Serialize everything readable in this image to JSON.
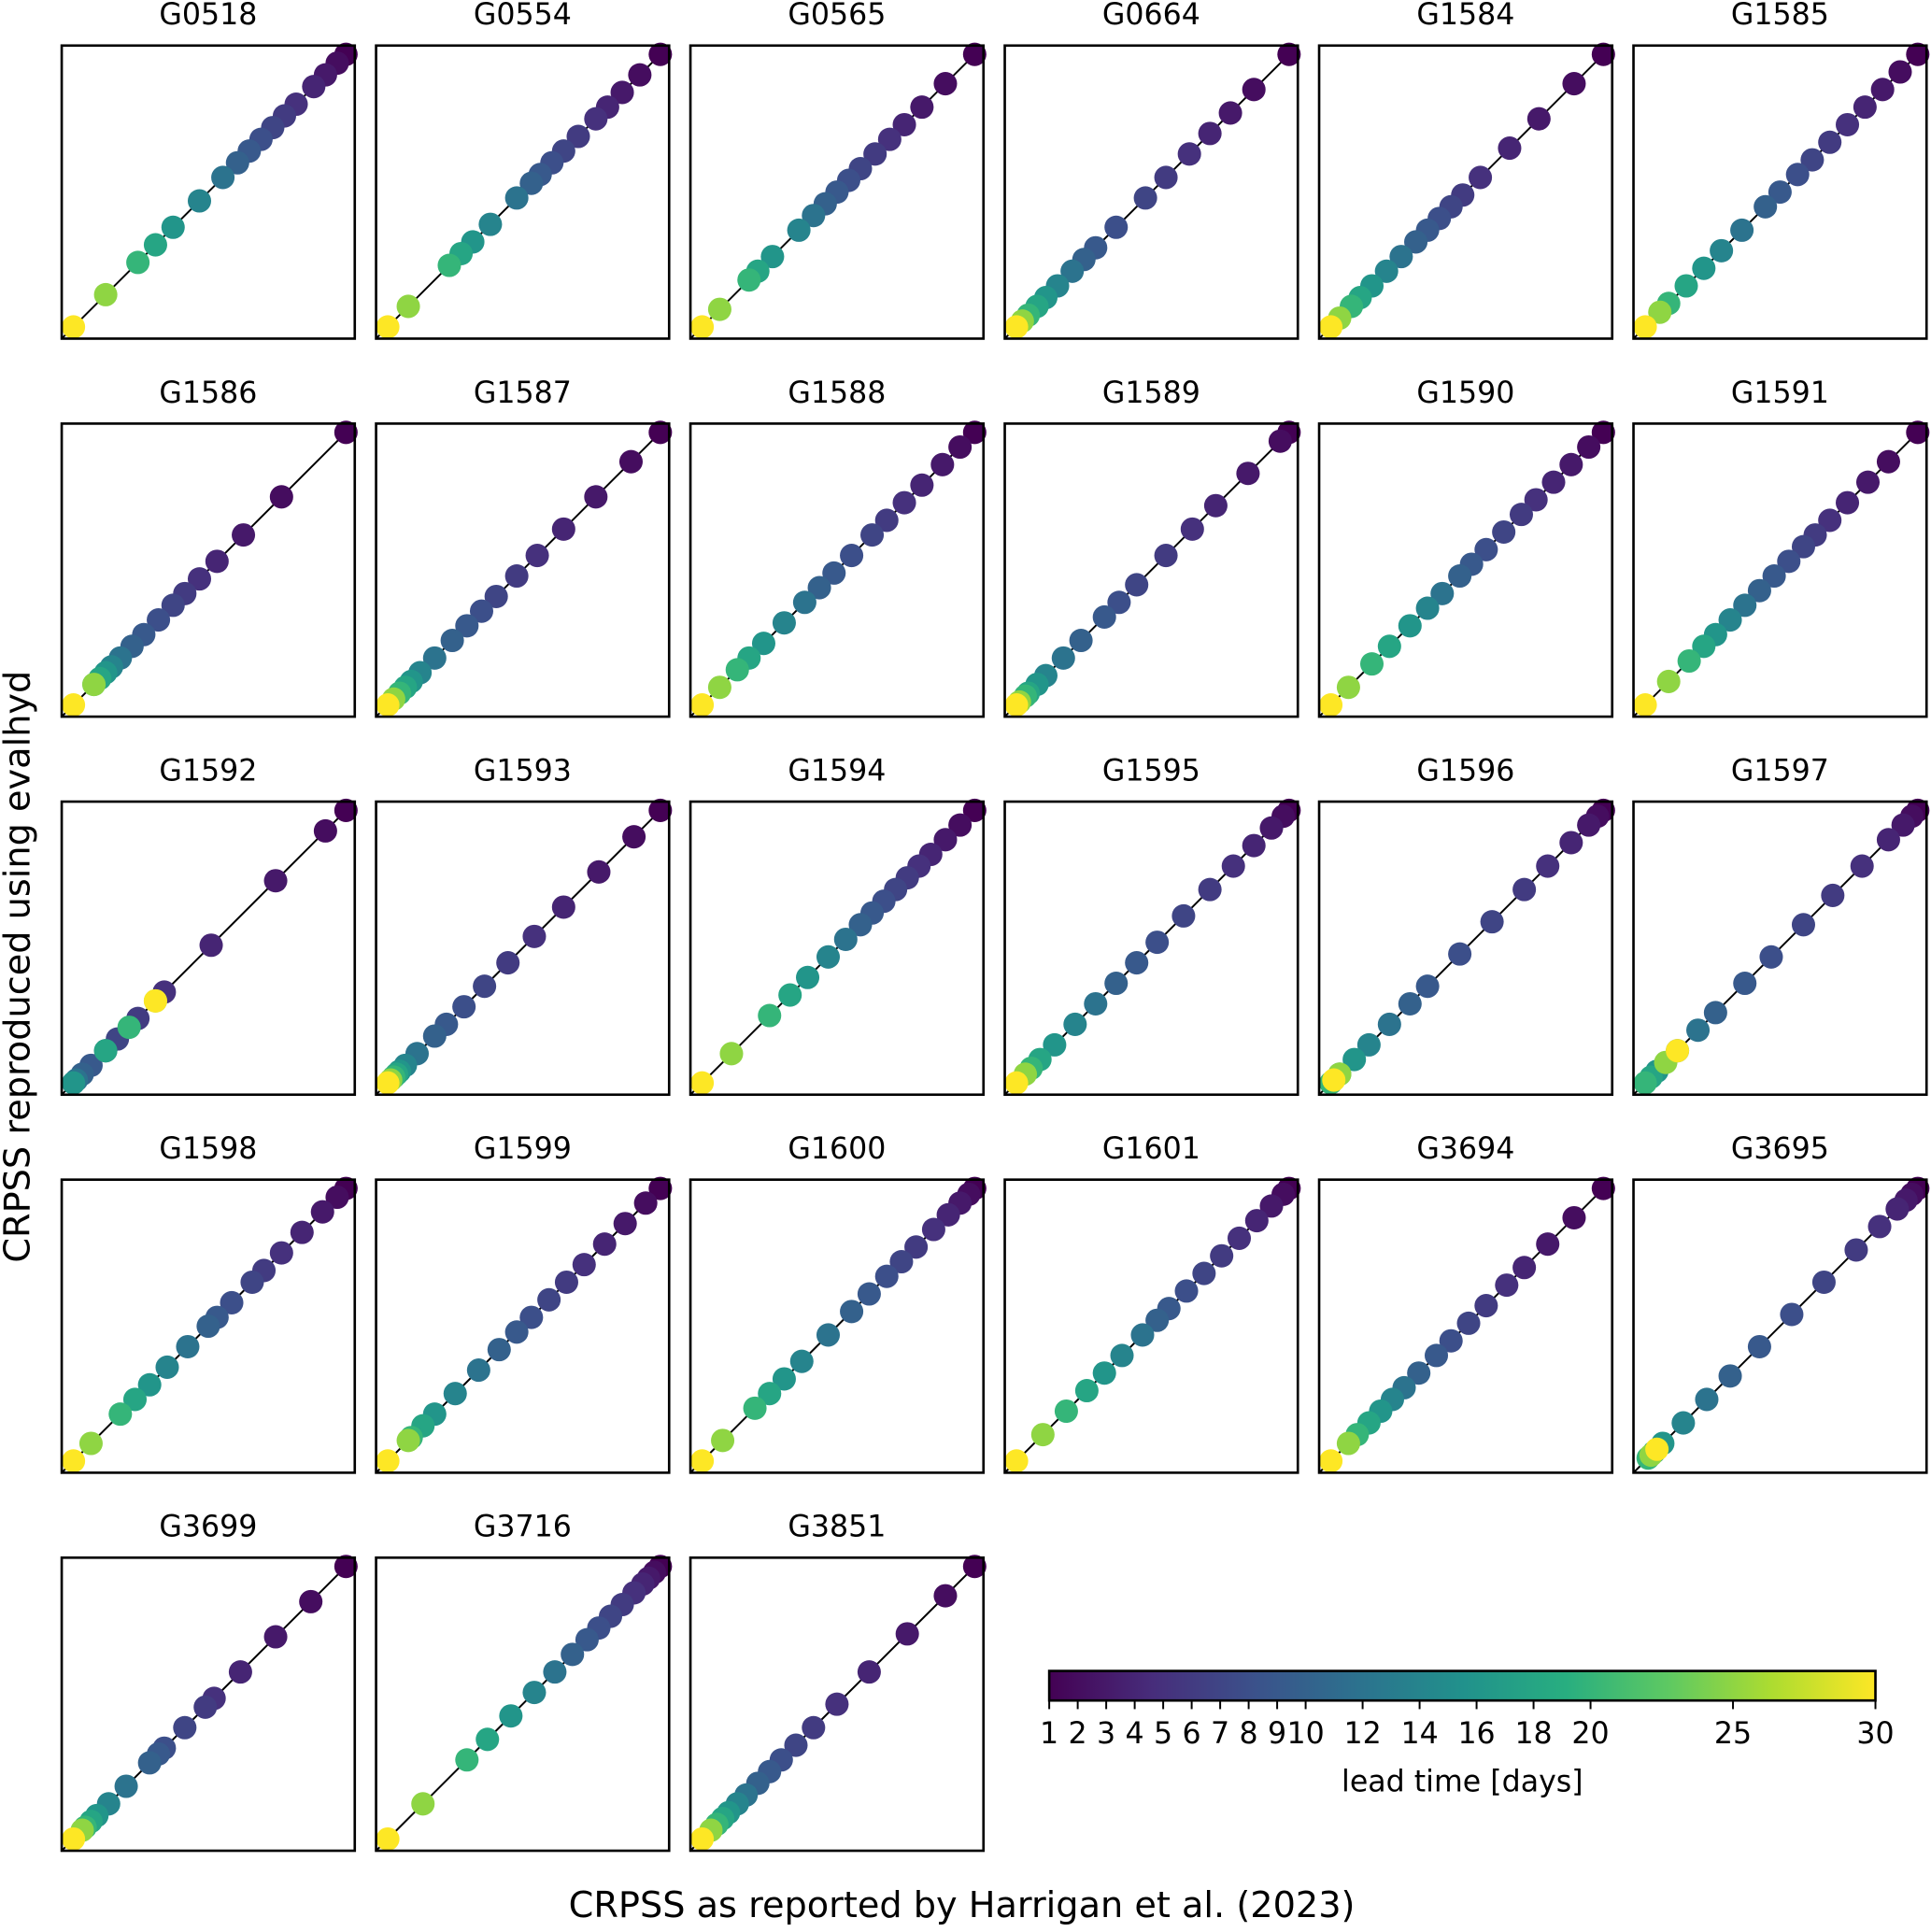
{
  "chart_data": {
    "type": "scatter",
    "x_label": "CRPSS as reported by Harrigan et al. (2023)",
    "y_label": "CRPSS reproduced using evalhyd",
    "xlim": [
      0,
      1
    ],
    "ylim": [
      0,
      1
    ],
    "lead_times": [
      1,
      2,
      3,
      4,
      5,
      6,
      7,
      8,
      9,
      10,
      12,
      14,
      16,
      18,
      20,
      25,
      30
    ],
    "colorbar": {
      "label": "lead time [days]",
      "colormap": "viridis",
      "clim": [
        1,
        30
      ],
      "ticks": [
        1,
        2,
        3,
        4,
        5,
        6,
        7,
        8,
        9,
        10,
        12,
        14,
        16,
        18,
        20,
        25,
        30
      ]
    },
    "panels": [
      {
        "title": "G0518",
        "x": [
          0.97,
          0.94,
          0.9,
          0.86,
          0.8,
          0.76,
          0.72,
          0.68,
          0.64,
          0.6,
          0.55,
          0.47,
          0.38,
          0.32,
          0.26,
          0.15,
          0.04
        ],
        "y": [
          0.97,
          0.94,
          0.9,
          0.86,
          0.8,
          0.76,
          0.72,
          0.68,
          0.64,
          0.6,
          0.55,
          0.47,
          0.38,
          0.32,
          0.26,
          0.15,
          0.04
        ]
      },
      {
        "title": "G0554",
        "x": [
          0.97,
          0.9,
          0.84,
          0.79,
          0.75,
          0.69,
          0.64,
          0.6,
          0.56,
          0.53,
          0.48,
          0.39,
          0.33,
          0.29,
          0.25,
          0.11,
          0.04
        ],
        "y": [
          0.97,
          0.9,
          0.84,
          0.79,
          0.75,
          0.69,
          0.64,
          0.6,
          0.56,
          0.53,
          0.48,
          0.39,
          0.33,
          0.29,
          0.25,
          0.11,
          0.04
        ]
      },
      {
        "title": "G0565",
        "x": [
          0.97,
          0.87,
          0.79,
          0.73,
          0.68,
          0.63,
          0.58,
          0.54,
          0.5,
          0.46,
          0.42,
          0.37,
          0.28,
          0.23,
          0.2,
          0.1,
          0.04
        ],
        "y": [
          0.97,
          0.87,
          0.79,
          0.73,
          0.68,
          0.63,
          0.58,
          0.54,
          0.5,
          0.46,
          0.42,
          0.37,
          0.28,
          0.23,
          0.2,
          0.1,
          0.04
        ]
      },
      {
        "title": "G0664",
        "x": [
          0.97,
          0.85,
          0.77,
          0.7,
          0.63,
          0.55,
          0.48,
          0.38,
          0.31,
          0.27,
          0.23,
          0.18,
          0.14,
          0.11,
          0.08,
          0.06,
          0.04
        ],
        "y": [
          0.97,
          0.85,
          0.77,
          0.7,
          0.63,
          0.55,
          0.48,
          0.38,
          0.31,
          0.27,
          0.23,
          0.18,
          0.14,
          0.11,
          0.08,
          0.06,
          0.04
        ]
      },
      {
        "title": "G1584",
        "x": [
          0.97,
          0.87,
          0.75,
          0.65,
          0.55,
          0.49,
          0.45,
          0.41,
          0.37,
          0.33,
          0.28,
          0.23,
          0.18,
          0.14,
          0.11,
          0.07,
          0.04
        ],
        "y": [
          0.97,
          0.87,
          0.75,
          0.65,
          0.55,
          0.49,
          0.45,
          0.41,
          0.37,
          0.33,
          0.28,
          0.23,
          0.18,
          0.14,
          0.11,
          0.07,
          0.04
        ]
      },
      {
        "title": "G1585",
        "x": [
          0.97,
          0.91,
          0.85,
          0.79,
          0.73,
          0.67,
          0.61,
          0.56,
          0.5,
          0.45,
          0.37,
          0.3,
          0.24,
          0.18,
          0.12,
          0.09,
          0.04
        ],
        "y": [
          0.97,
          0.91,
          0.85,
          0.79,
          0.73,
          0.67,
          0.61,
          0.56,
          0.5,
          0.45,
          0.37,
          0.3,
          0.24,
          0.18,
          0.12,
          0.09,
          0.04
        ]
      },
      {
        "title": "G1586",
        "x": [
          0.97,
          0.75,
          0.62,
          0.53,
          0.47,
          0.42,
          0.38,
          0.33,
          0.28,
          0.24,
          0.2,
          0.17,
          0.15,
          0.13,
          0.11,
          0.11,
          0.04
        ],
        "y": [
          0.97,
          0.75,
          0.62,
          0.53,
          0.47,
          0.42,
          0.38,
          0.33,
          0.28,
          0.24,
          0.2,
          0.17,
          0.15,
          0.13,
          0.11,
          0.11,
          0.04
        ]
      },
      {
        "title": "G1587",
        "x": [
          0.97,
          0.87,
          0.75,
          0.64,
          0.55,
          0.48,
          0.41,
          0.36,
          0.31,
          0.26,
          0.2,
          0.15,
          0.12,
          0.1,
          0.08,
          0.06,
          0.04
        ],
        "y": [
          0.97,
          0.87,
          0.75,
          0.64,
          0.55,
          0.48,
          0.41,
          0.36,
          0.31,
          0.26,
          0.2,
          0.15,
          0.12,
          0.1,
          0.08,
          0.06,
          0.04
        ]
      },
      {
        "title": "G1588",
        "x": [
          0.97,
          0.92,
          0.86,
          0.79,
          0.73,
          0.67,
          0.62,
          0.55,
          0.49,
          0.44,
          0.39,
          0.32,
          0.25,
          0.2,
          0.16,
          0.1,
          0.04
        ],
        "y": [
          0.97,
          0.92,
          0.86,
          0.79,
          0.73,
          0.67,
          0.62,
          0.55,
          0.49,
          0.44,
          0.39,
          0.32,
          0.25,
          0.2,
          0.16,
          0.1,
          0.04
        ]
      },
      {
        "title": "G1589",
        "x": [
          0.97,
          0.94,
          0.83,
          0.72,
          0.64,
          0.55,
          0.45,
          0.39,
          0.34,
          0.26,
          0.2,
          0.14,
          0.11,
          0.08,
          0.07,
          0.05,
          0.04
        ],
        "y": [
          0.97,
          0.94,
          0.83,
          0.72,
          0.64,
          0.55,
          0.45,
          0.39,
          0.34,
          0.26,
          0.2,
          0.14,
          0.11,
          0.08,
          0.07,
          0.05,
          0.04
        ]
      },
      {
        "title": "G1590",
        "x": [
          0.97,
          0.92,
          0.86,
          0.8,
          0.74,
          0.69,
          0.63,
          0.57,
          0.52,
          0.48,
          0.42,
          0.37,
          0.31,
          0.24,
          0.18,
          0.1,
          0.04
        ],
        "y": [
          0.97,
          0.92,
          0.86,
          0.8,
          0.74,
          0.69,
          0.63,
          0.57,
          0.52,
          0.48,
          0.42,
          0.37,
          0.31,
          0.24,
          0.18,
          0.1,
          0.04
        ]
      },
      {
        "title": "G1591",
        "x": [
          0.97,
          0.87,
          0.8,
          0.73,
          0.67,
          0.62,
          0.58,
          0.53,
          0.48,
          0.43,
          0.38,
          0.33,
          0.28,
          0.24,
          0.19,
          0.12,
          0.04
        ],
        "y": [
          0.97,
          0.87,
          0.8,
          0.73,
          0.67,
          0.62,
          0.58,
          0.53,
          0.48,
          0.43,
          0.38,
          0.33,
          0.28,
          0.24,
          0.19,
          0.12,
          0.04
        ]
      },
      {
        "title": "G1592",
        "x": [
          0.97,
          0.9,
          0.73,
          0.51,
          0.35,
          0.26,
          0.19,
          0.15,
          0.1,
          0.07,
          0.05,
          0.04,
          0.04,
          0.15,
          0.23,
          0.32,
          0.32
        ],
        "y": [
          0.97,
          0.9,
          0.73,
          0.51,
          0.35,
          0.26,
          0.19,
          0.15,
          0.1,
          0.07,
          0.05,
          0.04,
          0.04,
          0.15,
          0.23,
          0.32,
          0.32
        ]
      },
      {
        "title": "G1593",
        "x": [
          0.97,
          0.88,
          0.76,
          0.64,
          0.54,
          0.45,
          0.37,
          0.3,
          0.24,
          0.2,
          0.14,
          0.1,
          0.08,
          0.07,
          0.06,
          0.05,
          0.04
        ],
        "y": [
          0.97,
          0.88,
          0.76,
          0.64,
          0.54,
          0.45,
          0.37,
          0.3,
          0.24,
          0.2,
          0.14,
          0.1,
          0.08,
          0.07,
          0.06,
          0.05,
          0.04
        ]
      },
      {
        "title": "G1594",
        "x": [
          0.97,
          0.92,
          0.87,
          0.82,
          0.78,
          0.74,
          0.7,
          0.66,
          0.62,
          0.58,
          0.53,
          0.47,
          0.4,
          0.34,
          0.27,
          0.14,
          0.04
        ],
        "y": [
          0.97,
          0.92,
          0.87,
          0.82,
          0.78,
          0.74,
          0.7,
          0.66,
          0.62,
          0.58,
          0.53,
          0.47,
          0.4,
          0.34,
          0.27,
          0.14,
          0.04
        ]
      },
      {
        "title": "G1595",
        "x": [
          0.97,
          0.95,
          0.91,
          0.85,
          0.78,
          0.7,
          0.61,
          0.52,
          0.45,
          0.38,
          0.31,
          0.24,
          0.17,
          0.12,
          0.09,
          0.07,
          0.04
        ],
        "y": [
          0.97,
          0.95,
          0.91,
          0.85,
          0.78,
          0.7,
          0.61,
          0.52,
          0.45,
          0.38,
          0.31,
          0.24,
          0.17,
          0.12,
          0.09,
          0.07,
          0.04
        ]
      },
      {
        "title": "G1596",
        "x": [
          0.97,
          0.95,
          0.92,
          0.86,
          0.78,
          0.7,
          0.59,
          0.48,
          0.37,
          0.31,
          0.24,
          0.17,
          0.12,
          0.07,
          0.04,
          0.07,
          0.05
        ],
        "y": [
          0.97,
          0.95,
          0.92,
          0.86,
          0.78,
          0.7,
          0.59,
          0.48,
          0.37,
          0.31,
          0.24,
          0.17,
          0.12,
          0.07,
          0.04,
          0.07,
          0.05
        ]
      },
      {
        "title": "G1597",
        "x": [
          0.97,
          0.95,
          0.92,
          0.87,
          0.78,
          0.68,
          0.58,
          0.47,
          0.38,
          0.28,
          0.22,
          0.15,
          0.08,
          0.06,
          0.04,
          0.11,
          0.15
        ],
        "y": [
          0.97,
          0.95,
          0.92,
          0.87,
          0.78,
          0.68,
          0.58,
          0.47,
          0.38,
          0.28,
          0.22,
          0.15,
          0.08,
          0.06,
          0.04,
          0.11,
          0.15
        ]
      },
      {
        "title": "G1598",
        "x": [
          0.97,
          0.94,
          0.89,
          0.82,
          0.75,
          0.69,
          0.65,
          0.58,
          0.53,
          0.5,
          0.43,
          0.36,
          0.3,
          0.25,
          0.2,
          0.1,
          0.04
        ],
        "y": [
          0.97,
          0.94,
          0.89,
          0.82,
          0.75,
          0.69,
          0.65,
          0.58,
          0.53,
          0.5,
          0.43,
          0.36,
          0.3,
          0.25,
          0.2,
          0.1,
          0.04
        ]
      },
      {
        "title": "G1599",
        "x": [
          0.97,
          0.92,
          0.85,
          0.78,
          0.71,
          0.65,
          0.59,
          0.53,
          0.48,
          0.42,
          0.35,
          0.27,
          0.2,
          0.16,
          0.12,
          0.11,
          0.04
        ],
        "y": [
          0.97,
          0.92,
          0.85,
          0.78,
          0.71,
          0.65,
          0.59,
          0.53,
          0.48,
          0.42,
          0.35,
          0.27,
          0.2,
          0.16,
          0.12,
          0.11,
          0.04
        ]
      },
      {
        "title": "G1600",
        "x": [
          0.97,
          0.95,
          0.92,
          0.88,
          0.83,
          0.77,
          0.72,
          0.67,
          0.61,
          0.55,
          0.47,
          0.38,
          0.32,
          0.27,
          0.22,
          0.11,
          0.04
        ],
        "y": [
          0.97,
          0.95,
          0.92,
          0.88,
          0.83,
          0.77,
          0.72,
          0.67,
          0.61,
          0.55,
          0.47,
          0.38,
          0.32,
          0.27,
          0.22,
          0.11,
          0.04
        ]
      },
      {
        "title": "G1601",
        "x": [
          0.97,
          0.95,
          0.91,
          0.86,
          0.8,
          0.74,
          0.68,
          0.62,
          0.56,
          0.52,
          0.47,
          0.4,
          0.34,
          0.28,
          0.21,
          0.13,
          0.04
        ],
        "y": [
          0.97,
          0.95,
          0.91,
          0.86,
          0.8,
          0.74,
          0.68,
          0.62,
          0.56,
          0.52,
          0.47,
          0.4,
          0.34,
          0.28,
          0.21,
          0.13,
          0.04
        ]
      },
      {
        "title": "G3694",
        "x": [
          0.97,
          0.87,
          0.78,
          0.7,
          0.64,
          0.57,
          0.51,
          0.45,
          0.4,
          0.34,
          0.29,
          0.25,
          0.21,
          0.17,
          0.13,
          0.1,
          0.04
        ],
        "y": [
          0.97,
          0.87,
          0.78,
          0.7,
          0.64,
          0.57,
          0.51,
          0.45,
          0.4,
          0.34,
          0.29,
          0.25,
          0.21,
          0.17,
          0.13,
          0.1,
          0.04
        ]
      },
      {
        "title": "G3695",
        "x": [
          0.97,
          0.95,
          0.93,
          0.9,
          0.84,
          0.76,
          0.65,
          0.54,
          0.43,
          0.33,
          0.25,
          0.17,
          0.1,
          0.07,
          0.05,
          0.06,
          0.08
        ],
        "y": [
          0.97,
          0.95,
          0.93,
          0.9,
          0.84,
          0.76,
          0.65,
          0.54,
          0.43,
          0.33,
          0.25,
          0.17,
          0.1,
          0.07,
          0.05,
          0.06,
          0.08
        ]
      },
      {
        "title": "G3699",
        "x": [
          0.97,
          0.85,
          0.73,
          0.61,
          0.52,
          0.49,
          0.42,
          0.35,
          0.33,
          0.3,
          0.22,
          0.16,
          0.12,
          0.1,
          0.08,
          0.07,
          0.04
        ],
        "y": [
          0.97,
          0.85,
          0.73,
          0.61,
          0.52,
          0.49,
          0.42,
          0.35,
          0.33,
          0.3,
          0.22,
          0.16,
          0.12,
          0.1,
          0.08,
          0.07,
          0.04
        ]
      },
      {
        "title": "G3716",
        "x": [
          0.97,
          0.95,
          0.93,
          0.91,
          0.88,
          0.84,
          0.8,
          0.76,
          0.72,
          0.67,
          0.61,
          0.54,
          0.46,
          0.38,
          0.31,
          0.16,
          0.04
        ],
        "y": [
          0.97,
          0.95,
          0.93,
          0.91,
          0.88,
          0.84,
          0.8,
          0.76,
          0.72,
          0.67,
          0.61,
          0.54,
          0.46,
          0.38,
          0.31,
          0.16,
          0.04
        ]
      },
      {
        "title": "G3851",
        "x": [
          0.97,
          0.87,
          0.74,
          0.61,
          0.5,
          0.42,
          0.36,
          0.31,
          0.27,
          0.23,
          0.19,
          0.16,
          0.13,
          0.11,
          0.09,
          0.07,
          0.04
        ],
        "y": [
          0.97,
          0.87,
          0.74,
          0.61,
          0.5,
          0.42,
          0.36,
          0.31,
          0.27,
          0.23,
          0.19,
          0.16,
          0.13,
          0.11,
          0.09,
          0.07,
          0.04
        ]
      }
    ]
  }
}
